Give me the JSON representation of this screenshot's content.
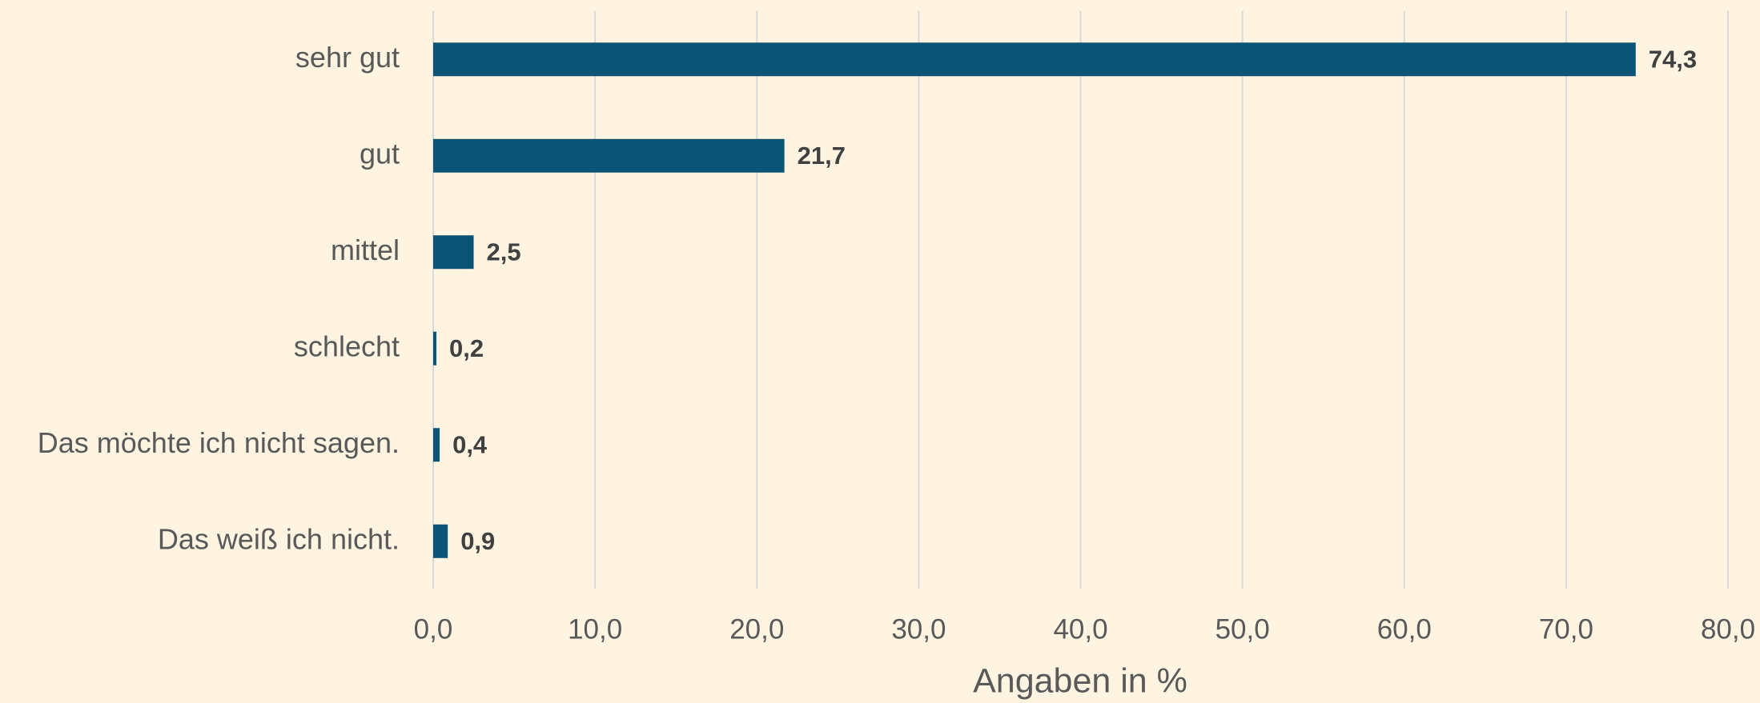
{
  "chart_data": {
    "type": "hbar",
    "categories": [
      "sehr gut",
      "gut",
      "mittel",
      "schlecht",
      "Das möchte ich nicht sagen.",
      "Das weiß ich nicht."
    ],
    "values": [
      74.3,
      21.7,
      2.5,
      0.2,
      0.4,
      0.9
    ],
    "value_labels": [
      "74,3",
      "21,7",
      "2,5",
      "0,2",
      "0,4",
      "0,9"
    ],
    "color": "#0b5475",
    "xlabel": "Angaben in %",
    "xlim": [
      0,
      80
    ],
    "xticks": [
      {
        "value": 0,
        "label": "0,0"
      },
      {
        "value": 10,
        "label": "10,0"
      },
      {
        "value": 20,
        "label": "20,0"
      },
      {
        "value": 30,
        "label": "30,0"
      },
      {
        "value": 40,
        "label": "40,0"
      },
      {
        "value": 50,
        "label": "50,0"
      },
      {
        "value": 60,
        "label": "60,0"
      },
      {
        "value": 70,
        "label": "70,0"
      },
      {
        "value": 80,
        "label": "80,0"
      }
    ],
    "grid": true
  }
}
